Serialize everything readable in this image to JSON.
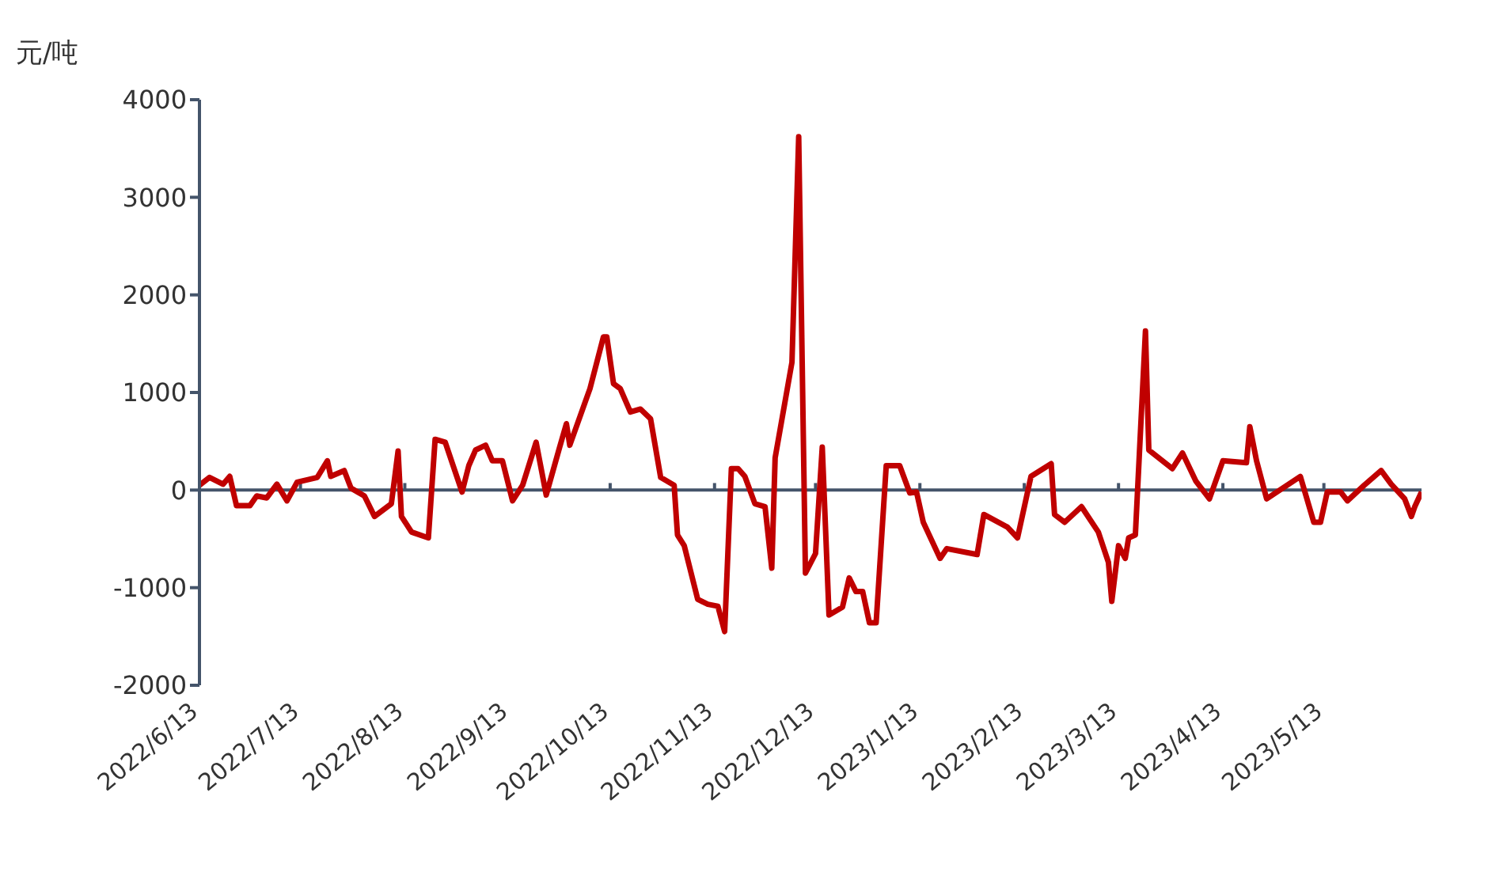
{
  "chart_data": {
    "type": "line",
    "ylabel": "元/吨",
    "x": [
      "2022-06-13",
      "2022-06-16",
      "2022-06-20",
      "2022-06-22",
      "2022-06-24",
      "2022-06-28",
      "2022-06-30",
      "2022-07-03",
      "2022-07-06",
      "2022-07-09",
      "2022-07-12",
      "2022-07-18",
      "2022-07-21",
      "2022-07-22",
      "2022-07-26",
      "2022-07-28",
      "2022-08-01",
      "2022-08-04",
      "2022-08-09",
      "2022-08-11",
      "2022-08-12",
      "2022-08-15",
      "2022-08-20",
      "2022-08-22",
      "2022-08-25",
      "2022-08-30",
      "2022-09-01",
      "2022-09-03",
      "2022-09-06",
      "2022-09-08",
      "2022-09-11",
      "2022-09-14",
      "2022-09-17",
      "2022-09-21",
      "2022-09-24",
      "2022-09-28",
      "2022-09-30",
      "2022-10-01",
      "2022-10-07",
      "2022-10-11",
      "2022-10-12",
      "2022-10-14",
      "2022-10-16",
      "2022-10-19",
      "2022-10-22",
      "2022-10-25",
      "2022-10-28",
      "2022-11-01",
      "2022-11-02",
      "2022-11-04",
      "2022-11-08",
      "2022-11-11",
      "2022-11-14",
      "2022-11-16",
      "2022-11-18",
      "2022-11-20",
      "2022-11-22",
      "2022-11-25",
      "2022-11-28",
      "2022-11-30",
      "2022-12-01",
      "2022-12-06",
      "2022-12-08",
      "2022-12-10",
      "2022-12-13",
      "2022-12-15",
      "2022-12-17",
      "2022-12-21",
      "2022-12-23",
      "2022-12-25",
      "2022-12-27",
      "2022-12-29",
      "2022-12-31",
      "2023-01-03",
      "2023-01-07",
      "2023-01-10",
      "2023-01-12",
      "2023-01-14",
      "2023-01-19",
      "2023-01-21",
      "2023-01-30",
      "2023-02-01",
      "2023-02-08",
      "2023-02-11",
      "2023-02-15",
      "2023-02-21",
      "2023-02-22",
      "2023-02-25",
      "2023-03-02",
      "2023-03-07",
      "2023-03-10",
      "2023-03-11",
      "2023-03-13",
      "2023-03-15",
      "2023-03-16",
      "2023-03-18",
      "2023-03-21",
      "2023-03-22",
      "2023-03-29",
      "2023-04-01",
      "2023-04-05",
      "2023-04-09",
      "2023-04-13",
      "2023-04-20",
      "2023-04-21",
      "2023-04-23",
      "2023-04-26",
      "2023-04-29",
      "2023-05-06",
      "2023-05-10",
      "2023-05-12",
      "2023-05-14",
      "2023-05-18",
      "2023-05-20",
      "2023-05-25",
      "2023-05-30",
      "2023-06-02",
      "2023-06-06",
      "2023-06-08",
      "2023-06-09",
      "2023-06-11"
    ],
    "series": [
      {
        "color": "#c00000",
        "values": [
          50,
          130,
          60,
          140,
          -160,
          -160,
          -60,
          -80,
          60,
          -110,
          80,
          130,
          300,
          140,
          200,
          20,
          -60,
          -270,
          -140,
          400,
          -270,
          -430,
          -490,
          520,
          490,
          -20,
          250,
          410,
          460,
          300,
          300,
          -110,
          50,
          490,
          -50,
          440,
          680,
          460,
          1040,
          1570,
          1570,
          1090,
          1040,
          800,
          830,
          730,
          130,
          50,
          -460,
          -570,
          -1120,
          -1170,
          -1190,
          -1450,
          220,
          220,
          140,
          -140,
          -170,
          -800,
          330,
          1310,
          3620,
          -850,
          -650,
          440,
          -1280,
          -1200,
          -900,
          -1040,
          -1040,
          -1360,
          -1360,
          250,
          250,
          -30,
          -20,
          -330,
          -700,
          -600,
          -660,
          -250,
          -380,
          -490,
          140,
          270,
          -250,
          -330,
          -170,
          -430,
          -740,
          -1140,
          -570,
          -700,
          -490,
          -460,
          1630,
          410,
          220,
          380,
          90,
          -90,
          300,
          280,
          650,
          300,
          -90,
          -20,
          140,
          -330,
          -330,
          -20,
          -20,
          -110,
          50,
          200,
          60,
          -90,
          -270,
          -170,
          -20
        ]
      }
    ],
    "xlim": [
      "2022-06-13",
      "2023-06-11"
    ],
    "xticks": [
      {
        "value": "2022-06-13",
        "label": "2022/6/13"
      },
      {
        "value": "2022-07-13",
        "label": "2022/7/13"
      },
      {
        "value": "2022-08-13",
        "label": "2022/8/13"
      },
      {
        "value": "2022-09-13",
        "label": "2022/9/13"
      },
      {
        "value": "2022-10-13",
        "label": "2022/10/13"
      },
      {
        "value": "2022-11-13",
        "label": "2022/11/13"
      },
      {
        "value": "2022-12-13",
        "label": "2022/12/13"
      },
      {
        "value": "2023-01-13",
        "label": "2023/1/13"
      },
      {
        "value": "2023-02-13",
        "label": "2023/2/13"
      },
      {
        "value": "2023-03-13",
        "label": "2023/3/13"
      },
      {
        "value": "2023-04-13",
        "label": "2023/4/13"
      },
      {
        "value": "2023-05-13",
        "label": "2023/5/13"
      }
    ],
    "ylim": [
      -2000,
      4000
    ],
    "yticks": [
      -2000,
      -1000,
      0,
      1000,
      2000,
      3000,
      4000
    ],
    "legend": false,
    "marker": "none",
    "line_style": "solid"
  }
}
